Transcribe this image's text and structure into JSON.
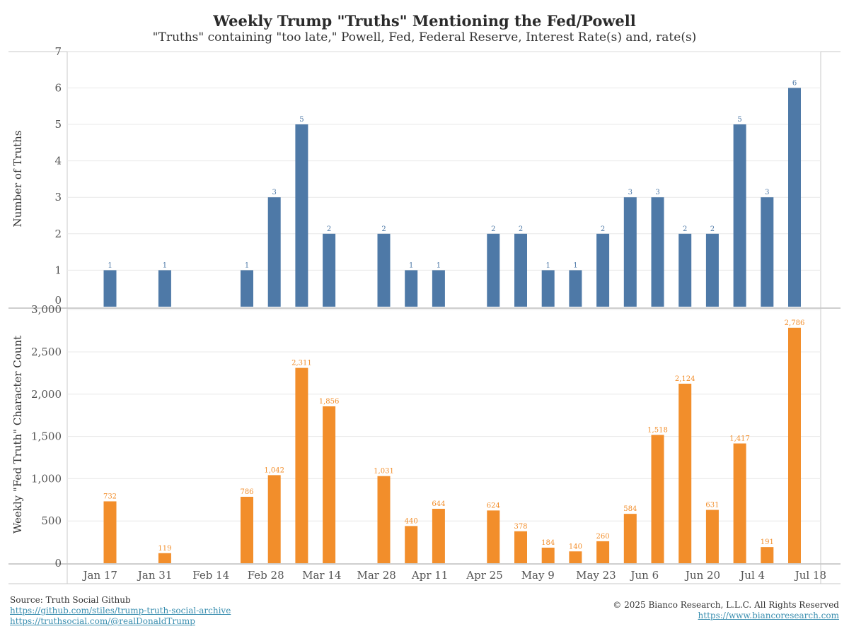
{
  "title": "Weekly Trump \"Truths\" Mentioning the Fed/Powell",
  "subtitle": "\"Truths\" containing \"too late,\" Powell, Fed, Federal Reserve, Interest Rate(s) and, rate(s)",
  "colors": {
    "top_bars": "#4e79a7",
    "bottom_bars": "#f28e2b",
    "grid": "#e8e8e8",
    "axis": "#c8c8c8"
  },
  "x_tick_labels": [
    "Jan 17",
    "Jan 31",
    "Feb 14",
    "Feb 28",
    "Mar 14",
    "Mar 28",
    "Apr 11",
    "Apr 25",
    "May 9",
    "May 23",
    "Jun 6",
    "Jun 20",
    "Jul 4",
    "Jul 18"
  ],
  "chart_data": [
    {
      "type": "bar",
      "ylabel": "Number of Truths",
      "ylim": [
        0,
        7
      ],
      "yticks": [
        "0",
        "1",
        "2",
        "3",
        "4",
        "5",
        "6",
        "7"
      ],
      "grid": true,
      "color": "#4e79a7",
      "bars": [
        {
          "week": 1,
          "value": 1,
          "label": "1"
        },
        {
          "week": 3,
          "value": 1,
          "label": "1"
        },
        {
          "week": 6,
          "value": 1,
          "label": "1"
        },
        {
          "week": 7,
          "value": 3,
          "label": "3"
        },
        {
          "week": 8,
          "value": 5,
          "label": "5"
        },
        {
          "week": 9,
          "value": 2,
          "label": "2"
        },
        {
          "week": 11,
          "value": 2,
          "label": "2"
        },
        {
          "week": 12,
          "value": 1,
          "label": "1"
        },
        {
          "week": 13,
          "value": 1,
          "label": "1"
        },
        {
          "week": 15,
          "value": 2,
          "label": "2"
        },
        {
          "week": 16,
          "value": 2,
          "label": "2"
        },
        {
          "week": 17,
          "value": 1,
          "label": "1"
        },
        {
          "week": 18,
          "value": 1,
          "label": "1"
        },
        {
          "week": 19,
          "value": 2,
          "label": "2"
        },
        {
          "week": 20,
          "value": 3,
          "label": "3"
        },
        {
          "week": 21,
          "value": 3,
          "label": "3"
        },
        {
          "week": 22,
          "value": 2,
          "label": "2"
        },
        {
          "week": 23,
          "value": 2,
          "label": "2"
        },
        {
          "week": 24,
          "value": 5,
          "label": "5"
        },
        {
          "week": 25,
          "value": 3,
          "label": "3"
        },
        {
          "week": 26,
          "value": 6,
          "label": "6"
        }
      ]
    },
    {
      "type": "bar",
      "ylabel": "Weekly \"Fed Truth\" Character Count",
      "ylim": [
        0,
        3000
      ],
      "yticks": [
        "0",
        "500",
        "1,000",
        "1,500",
        "2,000",
        "2,500",
        "3,000"
      ],
      "grid": true,
      "color": "#f28e2b",
      "bars": [
        {
          "week": 1,
          "value": 732,
          "label": "732"
        },
        {
          "week": 3,
          "value": 119,
          "label": "119"
        },
        {
          "week": 6,
          "value": 786,
          "label": "786"
        },
        {
          "week": 7,
          "value": 1042,
          "label": "1,042"
        },
        {
          "week": 8,
          "value": 2311,
          "label": "2,311"
        },
        {
          "week": 9,
          "value": 1856,
          "label": "1,856"
        },
        {
          "week": 11,
          "value": 1031,
          "label": "1,031"
        },
        {
          "week": 12,
          "value": 440,
          "label": "440"
        },
        {
          "week": 13,
          "value": 644,
          "label": "644"
        },
        {
          "week": 15,
          "value": 624,
          "label": "624"
        },
        {
          "week": 16,
          "value": 378,
          "label": "378"
        },
        {
          "week": 17,
          "value": 184,
          "label": "184"
        },
        {
          "week": 18,
          "value": 140,
          "label": "140"
        },
        {
          "week": 19,
          "value": 260,
          "label": "260"
        },
        {
          "week": 20,
          "value": 584,
          "label": "584"
        },
        {
          "week": 21,
          "value": 1518,
          "label": "1,518"
        },
        {
          "week": 22,
          "value": 2124,
          "label": "2,124"
        },
        {
          "week": 23,
          "value": 631,
          "label": "631"
        },
        {
          "week": 24,
          "value": 1417,
          "label": "1,417"
        },
        {
          "week": 25,
          "value": 191,
          "label": "191"
        },
        {
          "week": 26,
          "value": 2786,
          "label": "2,786"
        }
      ]
    }
  ],
  "footer": {
    "source": "Source: Truth Social Github",
    "link1": "https://github.com/stiles/trump-truth-social-archive",
    "link2": "https://truthsocial.com/@realDonaldTrump",
    "copyright": "© 2025 Bianco Research, L.L.C. All Rights Reserved",
    "website": "https://www.biancoresearch.com"
  }
}
